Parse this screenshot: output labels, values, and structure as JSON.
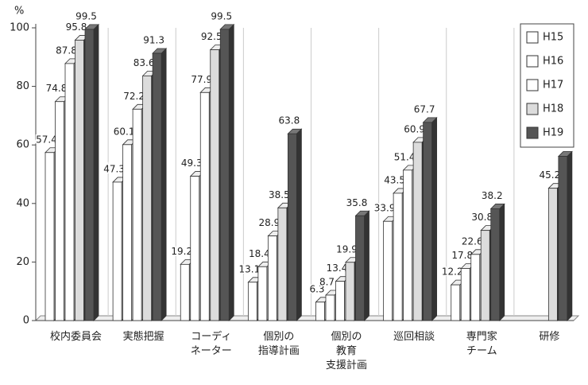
{
  "chart_data": {
    "type": "bar3d",
    "y_label": "%",
    "categories": [
      "校内委員会",
      "実態把握",
      "コーディ\nネーター",
      "個別の\n指導計画",
      "個別の\n教育\n支援計画",
      "巡回相談",
      "専門家\nチーム",
      "研修"
    ],
    "series": [
      {
        "name": "H15",
        "color": "#ffffff",
        "values": [
          57.4,
          47.3,
          19.2,
          13.1,
          6.3,
          33.9,
          12.2,
          null
        ]
      },
      {
        "name": "H16",
        "color": "#ffffff",
        "values": [
          74.8,
          60.1,
          49.3,
          18.4,
          8.7,
          43.5,
          17.8,
          null
        ]
      },
      {
        "name": "H17",
        "color": "#ffffff",
        "values": [
          87.8,
          72.2,
          77.9,
          28.9,
          13.4,
          51.4,
          22.6,
          null
        ]
      },
      {
        "name": "H18",
        "color": "#dcdcdc",
        "values": [
          95.8,
          83.6,
          92.5,
          38.5,
          19.9,
          60.9,
          30.8,
          45.2
        ]
      },
      {
        "name": "H19",
        "color": "#555555",
        "values": [
          99.5,
          91.3,
          99.5,
          63.8,
          35.8,
          67.7,
          38.2,
          56.1
        ]
      }
    ],
    "ylim": [
      0,
      100
    ],
    "yticks": [
      0,
      20,
      40,
      60,
      80,
      100
    ],
    "legend": "top-right"
  }
}
